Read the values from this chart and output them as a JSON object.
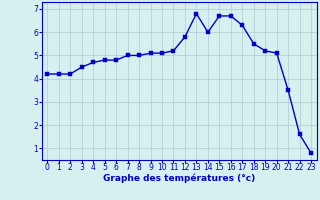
{
  "x": [
    0,
    1,
    2,
    3,
    4,
    5,
    6,
    7,
    8,
    9,
    10,
    11,
    12,
    13,
    14,
    15,
    16,
    17,
    18,
    19,
    20,
    21,
    22,
    23
  ],
  "y": [
    4.2,
    4.2,
    4.2,
    4.5,
    4.7,
    4.8,
    4.8,
    5.0,
    5.0,
    5.1,
    5.1,
    5.2,
    5.8,
    6.8,
    6.0,
    6.7,
    6.7,
    6.3,
    5.5,
    5.2,
    5.1,
    3.5,
    1.6,
    0.8
  ],
  "line_color": "#0000cc",
  "marker_color": "#0000cc",
  "bg_color": "#d6efef",
  "grid_color": "#aacccc",
  "axis_color": "#0000cc",
  "xlabel": "Graphe des températures (°c)",
  "xlim": [
    -0.5,
    23.5
  ],
  "ylim": [
    0.5,
    7.3
  ],
  "yticks": [
    1,
    2,
    3,
    4,
    5,
    6,
    7
  ],
  "xticks": [
    0,
    1,
    2,
    3,
    4,
    5,
    6,
    7,
    8,
    9,
    10,
    11,
    12,
    13,
    14,
    15,
    16,
    17,
    18,
    19,
    20,
    21,
    22,
    23
  ],
  "tick_label_fontsize": 5.5,
  "xlabel_fontsize": 6.5,
  "line_width": 1.0,
  "marker_size": 2.5
}
